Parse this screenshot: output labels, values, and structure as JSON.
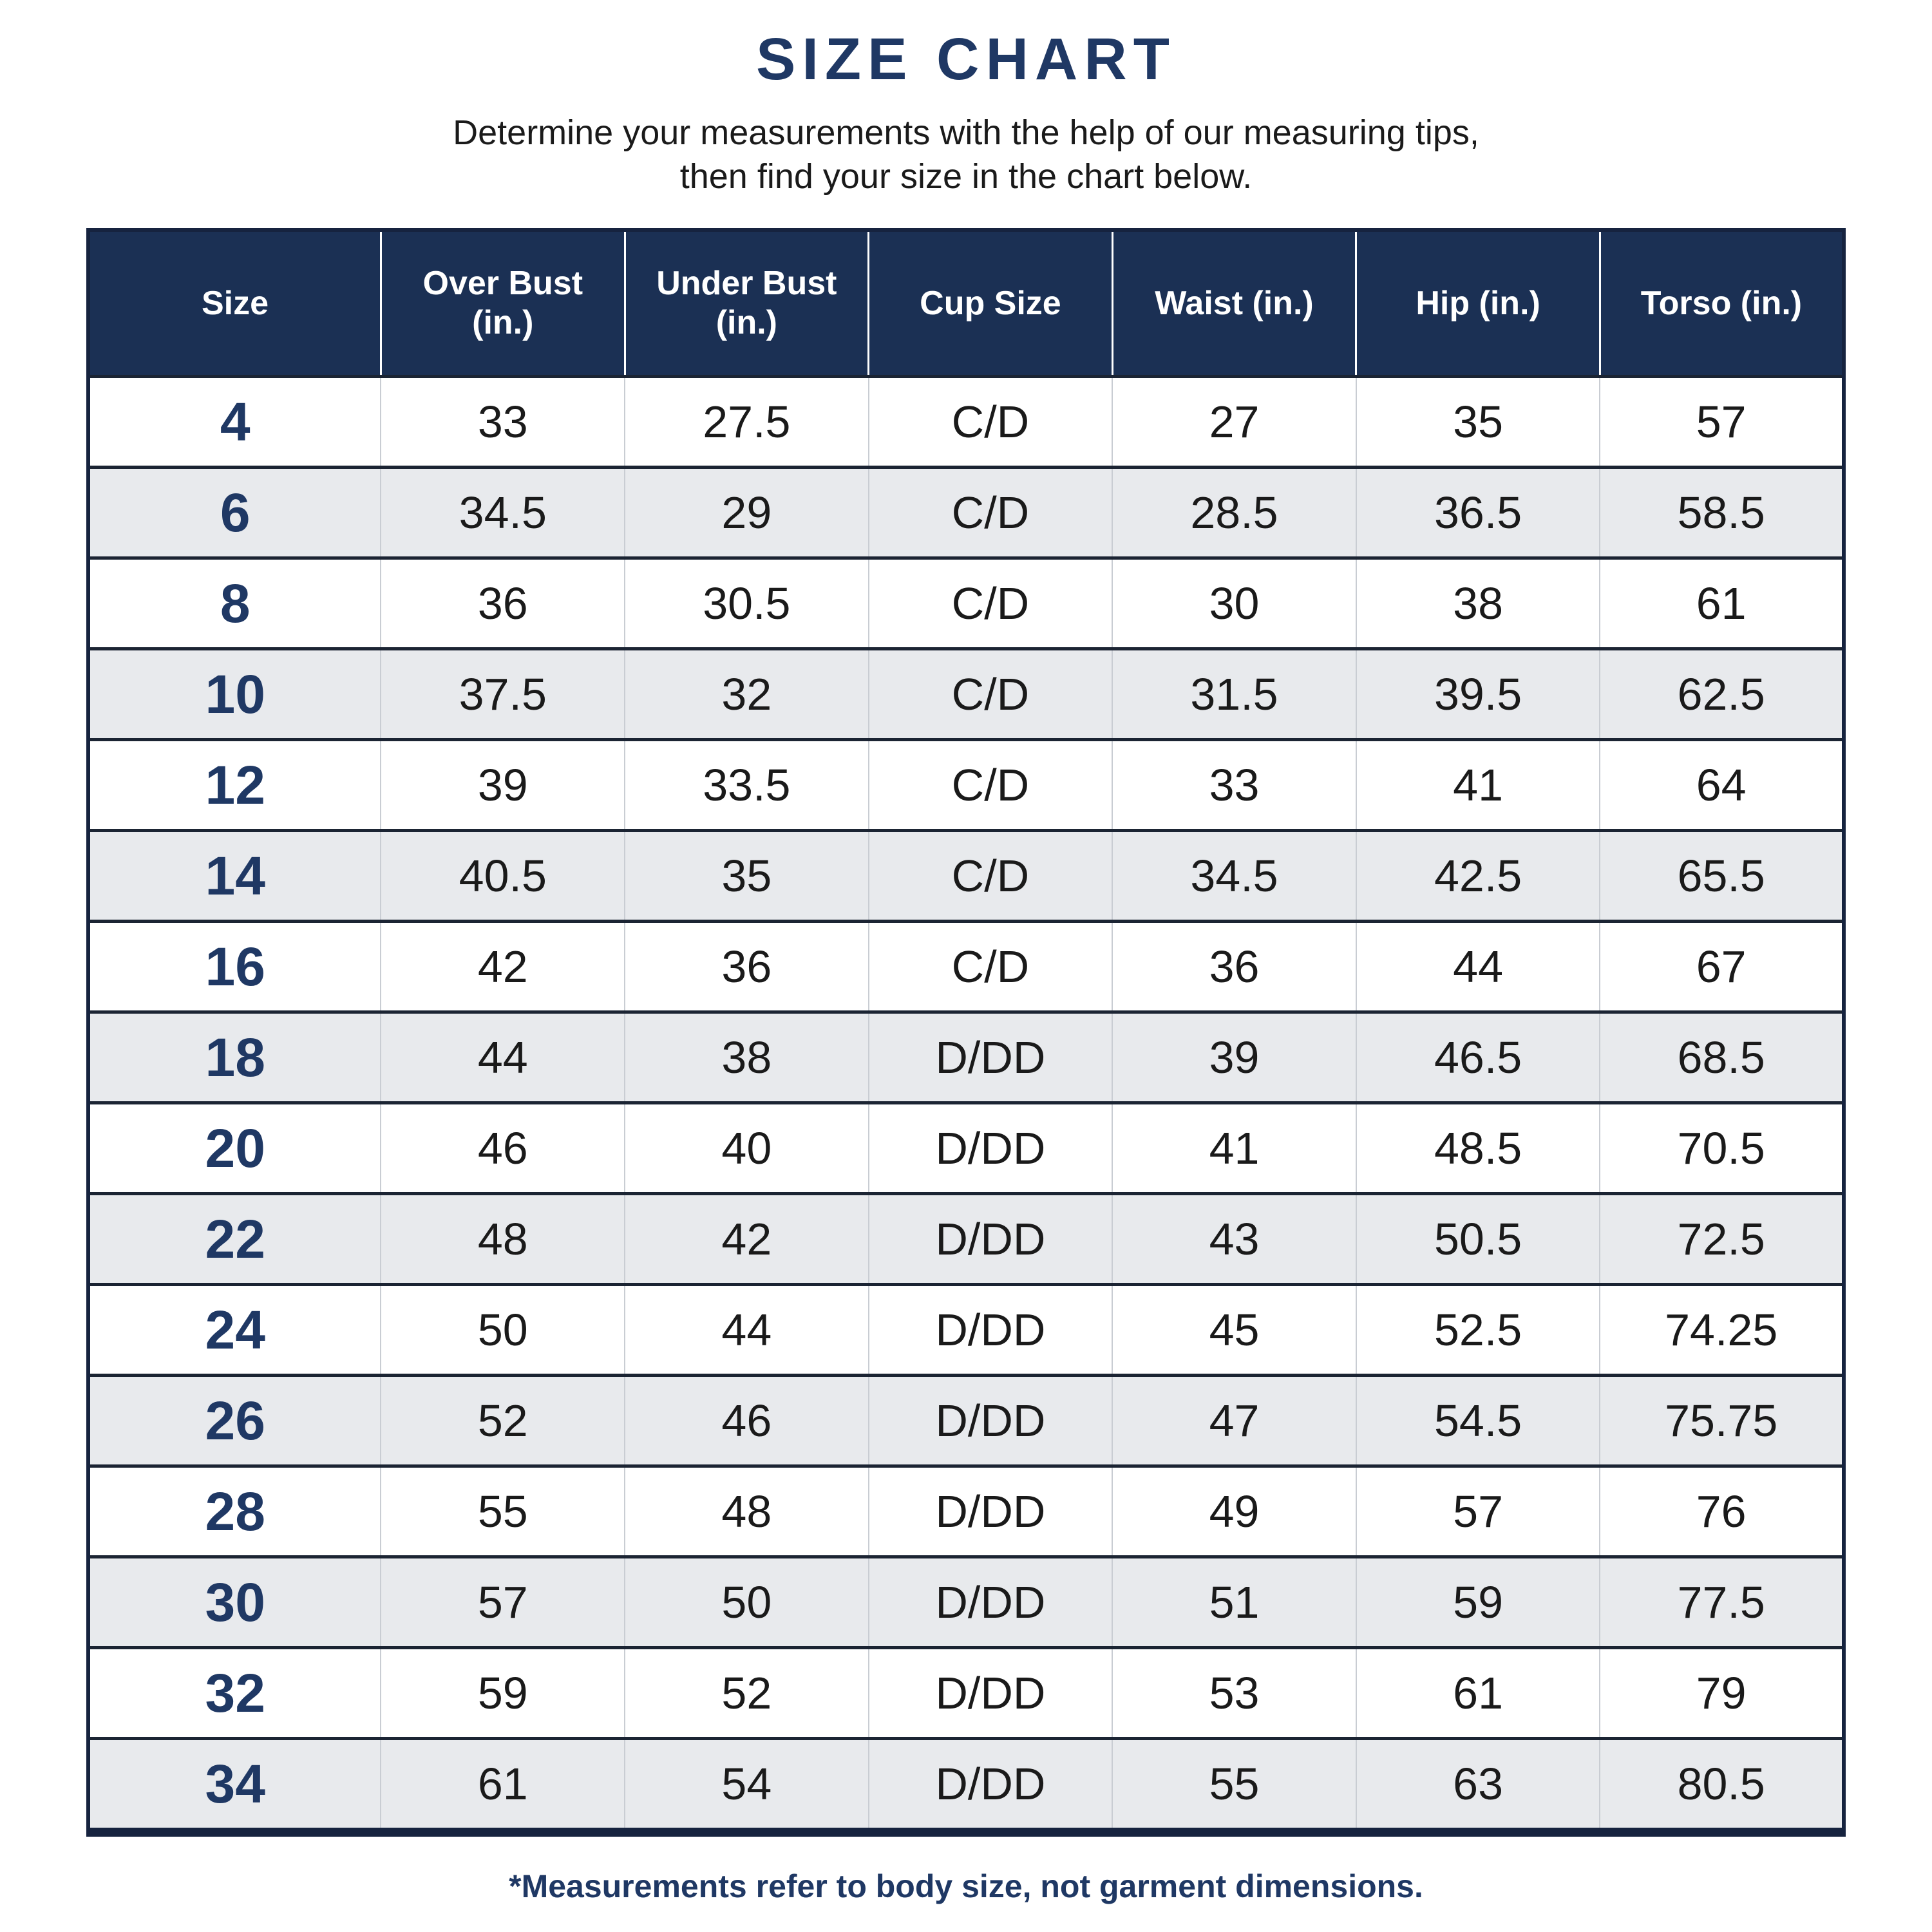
{
  "page": {
    "title": "SIZE CHART",
    "subtitle_line1": "Determine your measurements with the help of our measuring tips,",
    "subtitle_line2": "then find your size in the chart below.",
    "footnote": "*Measurements refer to body size, not garment dimensions."
  },
  "colors": {
    "header_bg": "#1b3054",
    "accent_navy": "#1f3864",
    "stripe_gray": "#e8eaed",
    "body_text": "#1a1a1a",
    "row_divider": "#1b2433",
    "col_divider": "#c9cdd3",
    "outer_border": "#16233f",
    "header_text": "#ffffff"
  },
  "chart_data": {
    "type": "table",
    "title": "SIZE CHART",
    "columns": [
      "Size",
      "Over Bust (in.)",
      "Under Bust (in.)",
      "Cup Size",
      "Waist (in.)",
      "Hip (in.)",
      "Torso (in.)"
    ],
    "rows": [
      [
        "4",
        "33",
        "27.5",
        "C/D",
        "27",
        "35",
        "57"
      ],
      [
        "6",
        "34.5",
        "29",
        "C/D",
        "28.5",
        "36.5",
        "58.5"
      ],
      [
        "8",
        "36",
        "30.5",
        "C/D",
        "30",
        "38",
        "61"
      ],
      [
        "10",
        "37.5",
        "32",
        "C/D",
        "31.5",
        "39.5",
        "62.5"
      ],
      [
        "12",
        "39",
        "33.5",
        "C/D",
        "33",
        "41",
        "64"
      ],
      [
        "14",
        "40.5",
        "35",
        "C/D",
        "34.5",
        "42.5",
        "65.5"
      ],
      [
        "16",
        "42",
        "36",
        "C/D",
        "36",
        "44",
        "67"
      ],
      [
        "18",
        "44",
        "38",
        "D/DD",
        "39",
        "46.5",
        "68.5"
      ],
      [
        "20",
        "46",
        "40",
        "D/DD",
        "41",
        "48.5",
        "70.5"
      ],
      [
        "22",
        "48",
        "42",
        "D/DD",
        "43",
        "50.5",
        "72.5"
      ],
      [
        "24",
        "50",
        "44",
        "D/DD",
        "45",
        "52.5",
        "74.25"
      ],
      [
        "26",
        "52",
        "46",
        "D/DD",
        "47",
        "54.5",
        "75.75"
      ],
      [
        "28",
        "55",
        "48",
        "D/DD",
        "49",
        "57",
        "76"
      ],
      [
        "30",
        "57",
        "50",
        "D/DD",
        "51",
        "59",
        "77.5"
      ],
      [
        "32",
        "59",
        "52",
        "D/DD",
        "53",
        "61",
        "79"
      ],
      [
        "34",
        "61",
        "54",
        "D/DD",
        "55",
        "63",
        "80.5"
      ]
    ]
  }
}
